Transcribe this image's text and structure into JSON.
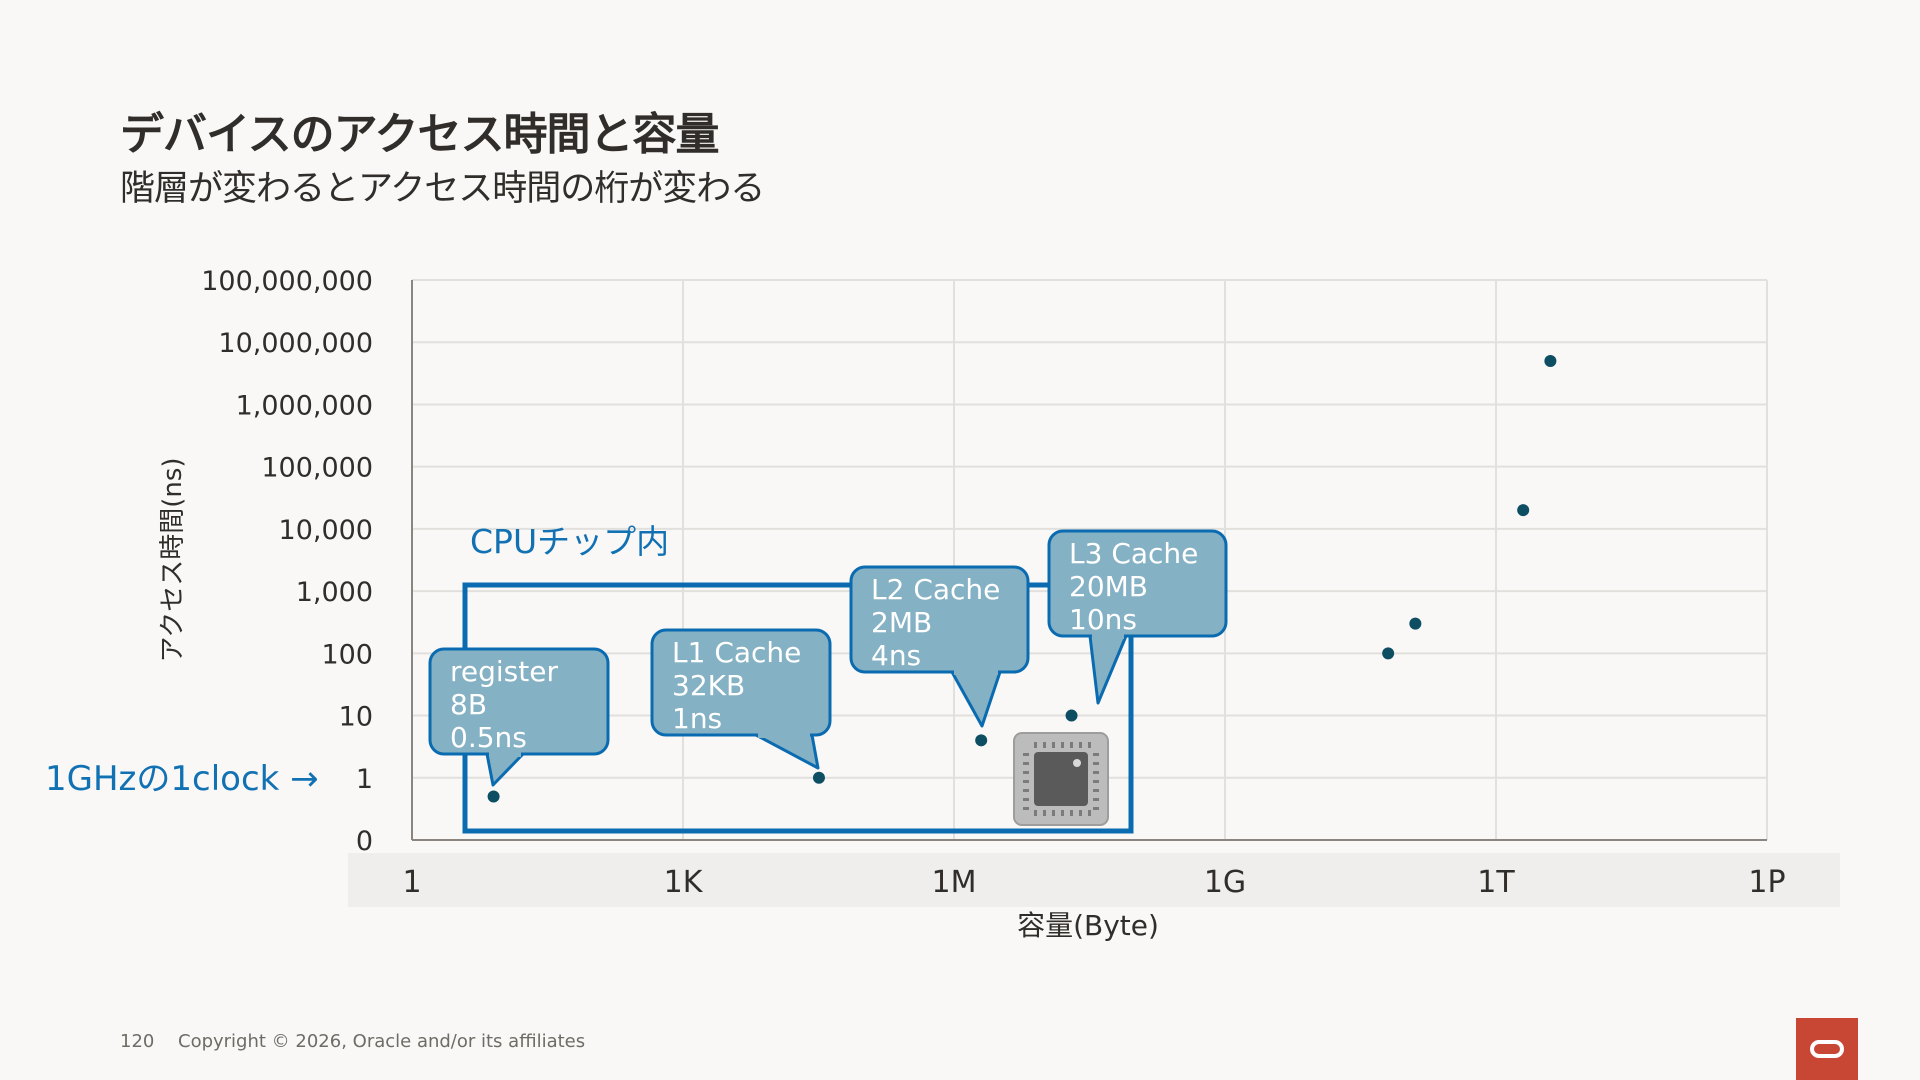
{
  "slide": {
    "title": "デバイスのアクセス時間と容量",
    "subtitle": "階層が変わるとアクセス時間の桁が変わる",
    "page_number": "120",
    "copyright": "Copyright © 2026, Oracle and/or its affiliates"
  },
  "colors": {
    "grid": "#e2e0dd",
    "axis": "#8a8580",
    "point": "#0d4e63",
    "callout_fill": "#85b1c4",
    "callout_stroke": "#0b6bb1",
    "box_stroke": "#0b6bb1",
    "accent_text": "#1171b3",
    "x_band": "#efeeec",
    "logo": "#c74634"
  },
  "chart_data": {
    "type": "scatter",
    "xlabel": "容量(Byte)",
    "ylabel": "アクセス時間(ns)",
    "x_scale": "log",
    "y_scale": "log",
    "xlim": [
      1,
      1000000000000000.0
    ],
    "ylim": [
      0.1,
      100000000
    ],
    "x_ticks": [
      {
        "value": 1,
        "label": "1"
      },
      {
        "value": 1000,
        "label": "1K"
      },
      {
        "value": 1000000,
        "label": "1M"
      },
      {
        "value": 1000000000,
        "label": "1G"
      },
      {
        "value": 1000000000000,
        "label": "1T"
      },
      {
        "value": 1000000000000000,
        "label": "1P"
      }
    ],
    "y_ticks": [
      {
        "value": 0.1,
        "label": "0"
      },
      {
        "value": 1,
        "label": "1"
      },
      {
        "value": 10,
        "label": "10"
      },
      {
        "value": 100,
        "label": "100"
      },
      {
        "value": 1000,
        "label": "1,000"
      },
      {
        "value": 10000,
        "label": "10,000"
      },
      {
        "value": 100000,
        "label": "100,000"
      },
      {
        "value": 1000000,
        "label": "1,000,000"
      },
      {
        "value": 10000000,
        "label": "10,000,000"
      },
      {
        "value": 100000000,
        "label": "100,000,000"
      }
    ],
    "grid": true,
    "points": [
      {
        "x": 8,
        "y": 0.5
      },
      {
        "x": 32000,
        "y": 1
      },
      {
        "x": 2000000,
        "y": 4
      },
      {
        "x": 20000000,
        "y": 10
      },
      {
        "x": 64000000000,
        "y": 100
      },
      {
        "x": 128000000000,
        "y": 300
      },
      {
        "x": 2000000000000,
        "y": 20000
      },
      {
        "x": 4000000000000,
        "y": 5000000
      }
    ],
    "callouts": [
      {
        "lines": [
          "register",
          "8B",
          "0.5ns"
        ],
        "point_index": 0
      },
      {
        "lines": [
          "L1 Cache",
          "32KB",
          "1ns"
        ],
        "point_index": 1
      },
      {
        "lines": [
          "L2 Cache",
          "2MB",
          "4ns"
        ],
        "point_index": 2
      },
      {
        "lines": [
          "L3 Cache",
          "20MB",
          "10ns"
        ],
        "point_index": 3
      }
    ],
    "annotations": {
      "cpu_region_label": "CPUチップ内",
      "clock_label": "1GHzの1clock →",
      "chip_icon": "cpu-chip-icon"
    }
  }
}
